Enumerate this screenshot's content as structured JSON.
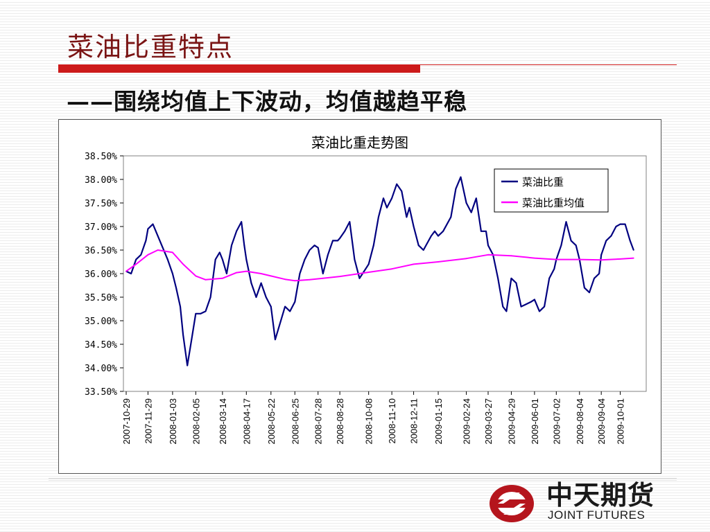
{
  "slide": {
    "title": "菜油比重特点",
    "subtitle": "——围绕均值上下波动，均值越趋平稳"
  },
  "colors": {
    "accent_red": "#cc1a1a",
    "title_text": "#7a1414",
    "series_main": "#000080",
    "series_mean": "#ff00ff"
  },
  "logo": {
    "icon": "joint-futures-logo-icon",
    "name": "中天期货",
    "english": "JOINT FUTURES"
  },
  "chart_data": {
    "type": "line",
    "title": "菜油比重走势图",
    "xlabel": "",
    "ylabel": "",
    "ylim": [
      33.5,
      38.5
    ],
    "y_unit": "%",
    "y_ticks": [
      "38.50%",
      "38.00%",
      "37.50%",
      "37.00%",
      "36.50%",
      "36.00%",
      "35.50%",
      "35.00%",
      "34.50%",
      "34.00%",
      "33.50%"
    ],
    "x_tick_labels": [
      "2007-10-29",
      "2007-11-29",
      "2008-01-03",
      "2008-02-05",
      "2008-03-14",
      "2008-04-17",
      "2008-05-22",
      "2008-06-25",
      "2008-07-28",
      "2008-08-28",
      "2008-10-08",
      "2008-11-10",
      "2008-12-11",
      "2009-01-15",
      "2009-02-24",
      "2009-03-27",
      "2009-04-29",
      "2009-06-01",
      "2009-07-02",
      "2009-08-04",
      "2009-09-04",
      "2009-10-01"
    ],
    "grid": false,
    "legend_position": "top-right",
    "series": [
      {
        "name": "菜油比重",
        "color": "#000080",
        "points": [
          [
            "2007-10-29",
            36.05
          ],
          [
            "2007-11-05",
            36.0
          ],
          [
            "2007-11-12",
            36.3
          ],
          [
            "2007-11-19",
            36.4
          ],
          [
            "2007-11-26",
            36.7
          ],
          [
            "2007-11-29",
            36.95
          ],
          [
            "2007-12-06",
            37.05
          ],
          [
            "2007-12-13",
            36.8
          ],
          [
            "2007-12-20",
            36.55
          ],
          [
            "2007-12-27",
            36.3
          ],
          [
            "2008-01-03",
            36.0
          ],
          [
            "2008-01-08",
            35.7
          ],
          [
            "2008-01-14",
            35.3
          ],
          [
            "2008-01-18",
            34.7
          ],
          [
            "2008-01-24",
            34.05
          ],
          [
            "2008-01-30",
            34.6
          ],
          [
            "2008-02-05",
            35.15
          ],
          [
            "2008-02-12",
            35.15
          ],
          [
            "2008-02-19",
            35.2
          ],
          [
            "2008-02-26",
            35.5
          ],
          [
            "2008-03-04",
            36.3
          ],
          [
            "2008-03-10",
            36.45
          ],
          [
            "2008-03-14",
            36.3
          ],
          [
            "2008-03-20",
            36.0
          ],
          [
            "2008-03-27",
            36.6
          ],
          [
            "2008-04-03",
            36.9
          ],
          [
            "2008-04-10",
            37.1
          ],
          [
            "2008-04-14",
            36.6
          ],
          [
            "2008-04-17",
            36.3
          ],
          [
            "2008-04-24",
            35.8
          ],
          [
            "2008-05-01",
            35.5
          ],
          [
            "2008-05-08",
            35.8
          ],
          [
            "2008-05-15",
            35.5
          ],
          [
            "2008-05-22",
            35.3
          ],
          [
            "2008-05-28",
            34.6
          ],
          [
            "2008-06-04",
            34.95
          ],
          [
            "2008-06-11",
            35.3
          ],
          [
            "2008-06-18",
            35.2
          ],
          [
            "2008-06-25",
            35.4
          ],
          [
            "2008-07-02",
            36.0
          ],
          [
            "2008-07-09",
            36.3
          ],
          [
            "2008-07-16",
            36.5
          ],
          [
            "2008-07-23",
            36.6
          ],
          [
            "2008-07-28",
            36.55
          ],
          [
            "2008-08-04",
            36.0
          ],
          [
            "2008-08-11",
            36.4
          ],
          [
            "2008-08-18",
            36.7
          ],
          [
            "2008-08-25",
            36.7
          ],
          [
            "2008-08-28",
            36.75
          ],
          [
            "2008-09-04",
            36.9
          ],
          [
            "2008-09-11",
            37.1
          ],
          [
            "2008-09-18",
            36.3
          ],
          [
            "2008-09-25",
            35.9
          ],
          [
            "2008-10-08",
            36.2
          ],
          [
            "2008-10-15",
            36.6
          ],
          [
            "2008-10-22",
            37.2
          ],
          [
            "2008-10-29",
            37.6
          ],
          [
            "2008-11-03",
            37.4
          ],
          [
            "2008-11-10",
            37.6
          ],
          [
            "2008-11-17",
            37.9
          ],
          [
            "2008-11-24",
            37.75
          ],
          [
            "2008-12-01",
            37.2
          ],
          [
            "2008-12-05",
            37.4
          ],
          [
            "2008-12-11",
            37.0
          ],
          [
            "2008-12-18",
            36.6
          ],
          [
            "2008-12-25",
            36.5
          ],
          [
            "2009-01-05",
            36.8
          ],
          [
            "2009-01-10",
            36.9
          ],
          [
            "2009-01-15",
            36.8
          ],
          [
            "2009-01-22",
            36.9
          ],
          [
            "2009-02-02",
            37.2
          ],
          [
            "2009-02-09",
            37.8
          ],
          [
            "2009-02-16",
            38.05
          ],
          [
            "2009-02-24",
            37.5
          ],
          [
            "2009-03-03",
            37.3
          ],
          [
            "2009-03-10",
            37.6
          ],
          [
            "2009-03-17",
            36.9
          ],
          [
            "2009-03-24",
            36.9
          ],
          [
            "2009-03-27",
            36.6
          ],
          [
            "2009-04-03",
            36.4
          ],
          [
            "2009-04-10",
            35.9
          ],
          [
            "2009-04-17",
            35.3
          ],
          [
            "2009-04-22",
            35.2
          ],
          [
            "2009-04-29",
            35.9
          ],
          [
            "2009-05-06",
            35.8
          ],
          [
            "2009-05-13",
            35.3
          ],
          [
            "2009-05-20",
            35.35
          ],
          [
            "2009-05-27",
            35.4
          ],
          [
            "2009-06-01",
            35.45
          ],
          [
            "2009-06-08",
            35.2
          ],
          [
            "2009-06-15",
            35.3
          ],
          [
            "2009-06-22",
            35.9
          ],
          [
            "2009-06-29",
            36.1
          ],
          [
            "2009-07-02",
            36.3
          ],
          [
            "2009-07-09",
            36.6
          ],
          [
            "2009-07-16",
            37.1
          ],
          [
            "2009-07-23",
            36.7
          ],
          [
            "2009-07-30",
            36.6
          ],
          [
            "2009-08-04",
            36.3
          ],
          [
            "2009-08-11",
            35.7
          ],
          [
            "2009-08-18",
            35.6
          ],
          [
            "2009-08-25",
            35.9
          ],
          [
            "2009-09-01",
            36.0
          ],
          [
            "2009-09-04",
            36.4
          ],
          [
            "2009-09-11",
            36.7
          ],
          [
            "2009-09-18",
            36.8
          ],
          [
            "2009-09-25",
            37.0
          ],
          [
            "2009-10-01",
            37.05
          ],
          [
            "2009-10-08",
            37.05
          ],
          [
            "2009-10-15",
            36.7
          ],
          [
            "2009-10-20",
            36.5
          ]
        ]
      },
      {
        "name": "菜油比重均值",
        "color": "#ff00ff",
        "points": [
          [
            "2007-10-29",
            36.05
          ],
          [
            "2007-11-12",
            36.2
          ],
          [
            "2007-11-29",
            36.4
          ],
          [
            "2007-12-13",
            36.5
          ],
          [
            "2008-01-03",
            36.45
          ],
          [
            "2008-01-18",
            36.2
          ],
          [
            "2008-02-05",
            35.95
          ],
          [
            "2008-02-19",
            35.87
          ],
          [
            "2008-03-14",
            35.9
          ],
          [
            "2008-04-03",
            36.02
          ],
          [
            "2008-04-17",
            36.05
          ],
          [
            "2008-05-08",
            36.0
          ],
          [
            "2008-05-22",
            35.95
          ],
          [
            "2008-06-11",
            35.88
          ],
          [
            "2008-06-25",
            35.85
          ],
          [
            "2008-07-16",
            35.87
          ],
          [
            "2008-08-04",
            35.9
          ],
          [
            "2008-08-28",
            35.94
          ],
          [
            "2008-10-08",
            36.03
          ],
          [
            "2008-11-10",
            36.1
          ],
          [
            "2008-12-11",
            36.2
          ],
          [
            "2009-01-15",
            36.25
          ],
          [
            "2009-02-24",
            36.32
          ],
          [
            "2009-03-27",
            36.4
          ],
          [
            "2009-04-29",
            36.38
          ],
          [
            "2009-06-01",
            36.33
          ],
          [
            "2009-07-02",
            36.3
          ],
          [
            "2009-08-04",
            36.3
          ],
          [
            "2009-09-04",
            36.29
          ],
          [
            "2009-10-01",
            36.31
          ],
          [
            "2009-10-20",
            36.33
          ]
        ]
      }
    ]
  }
}
